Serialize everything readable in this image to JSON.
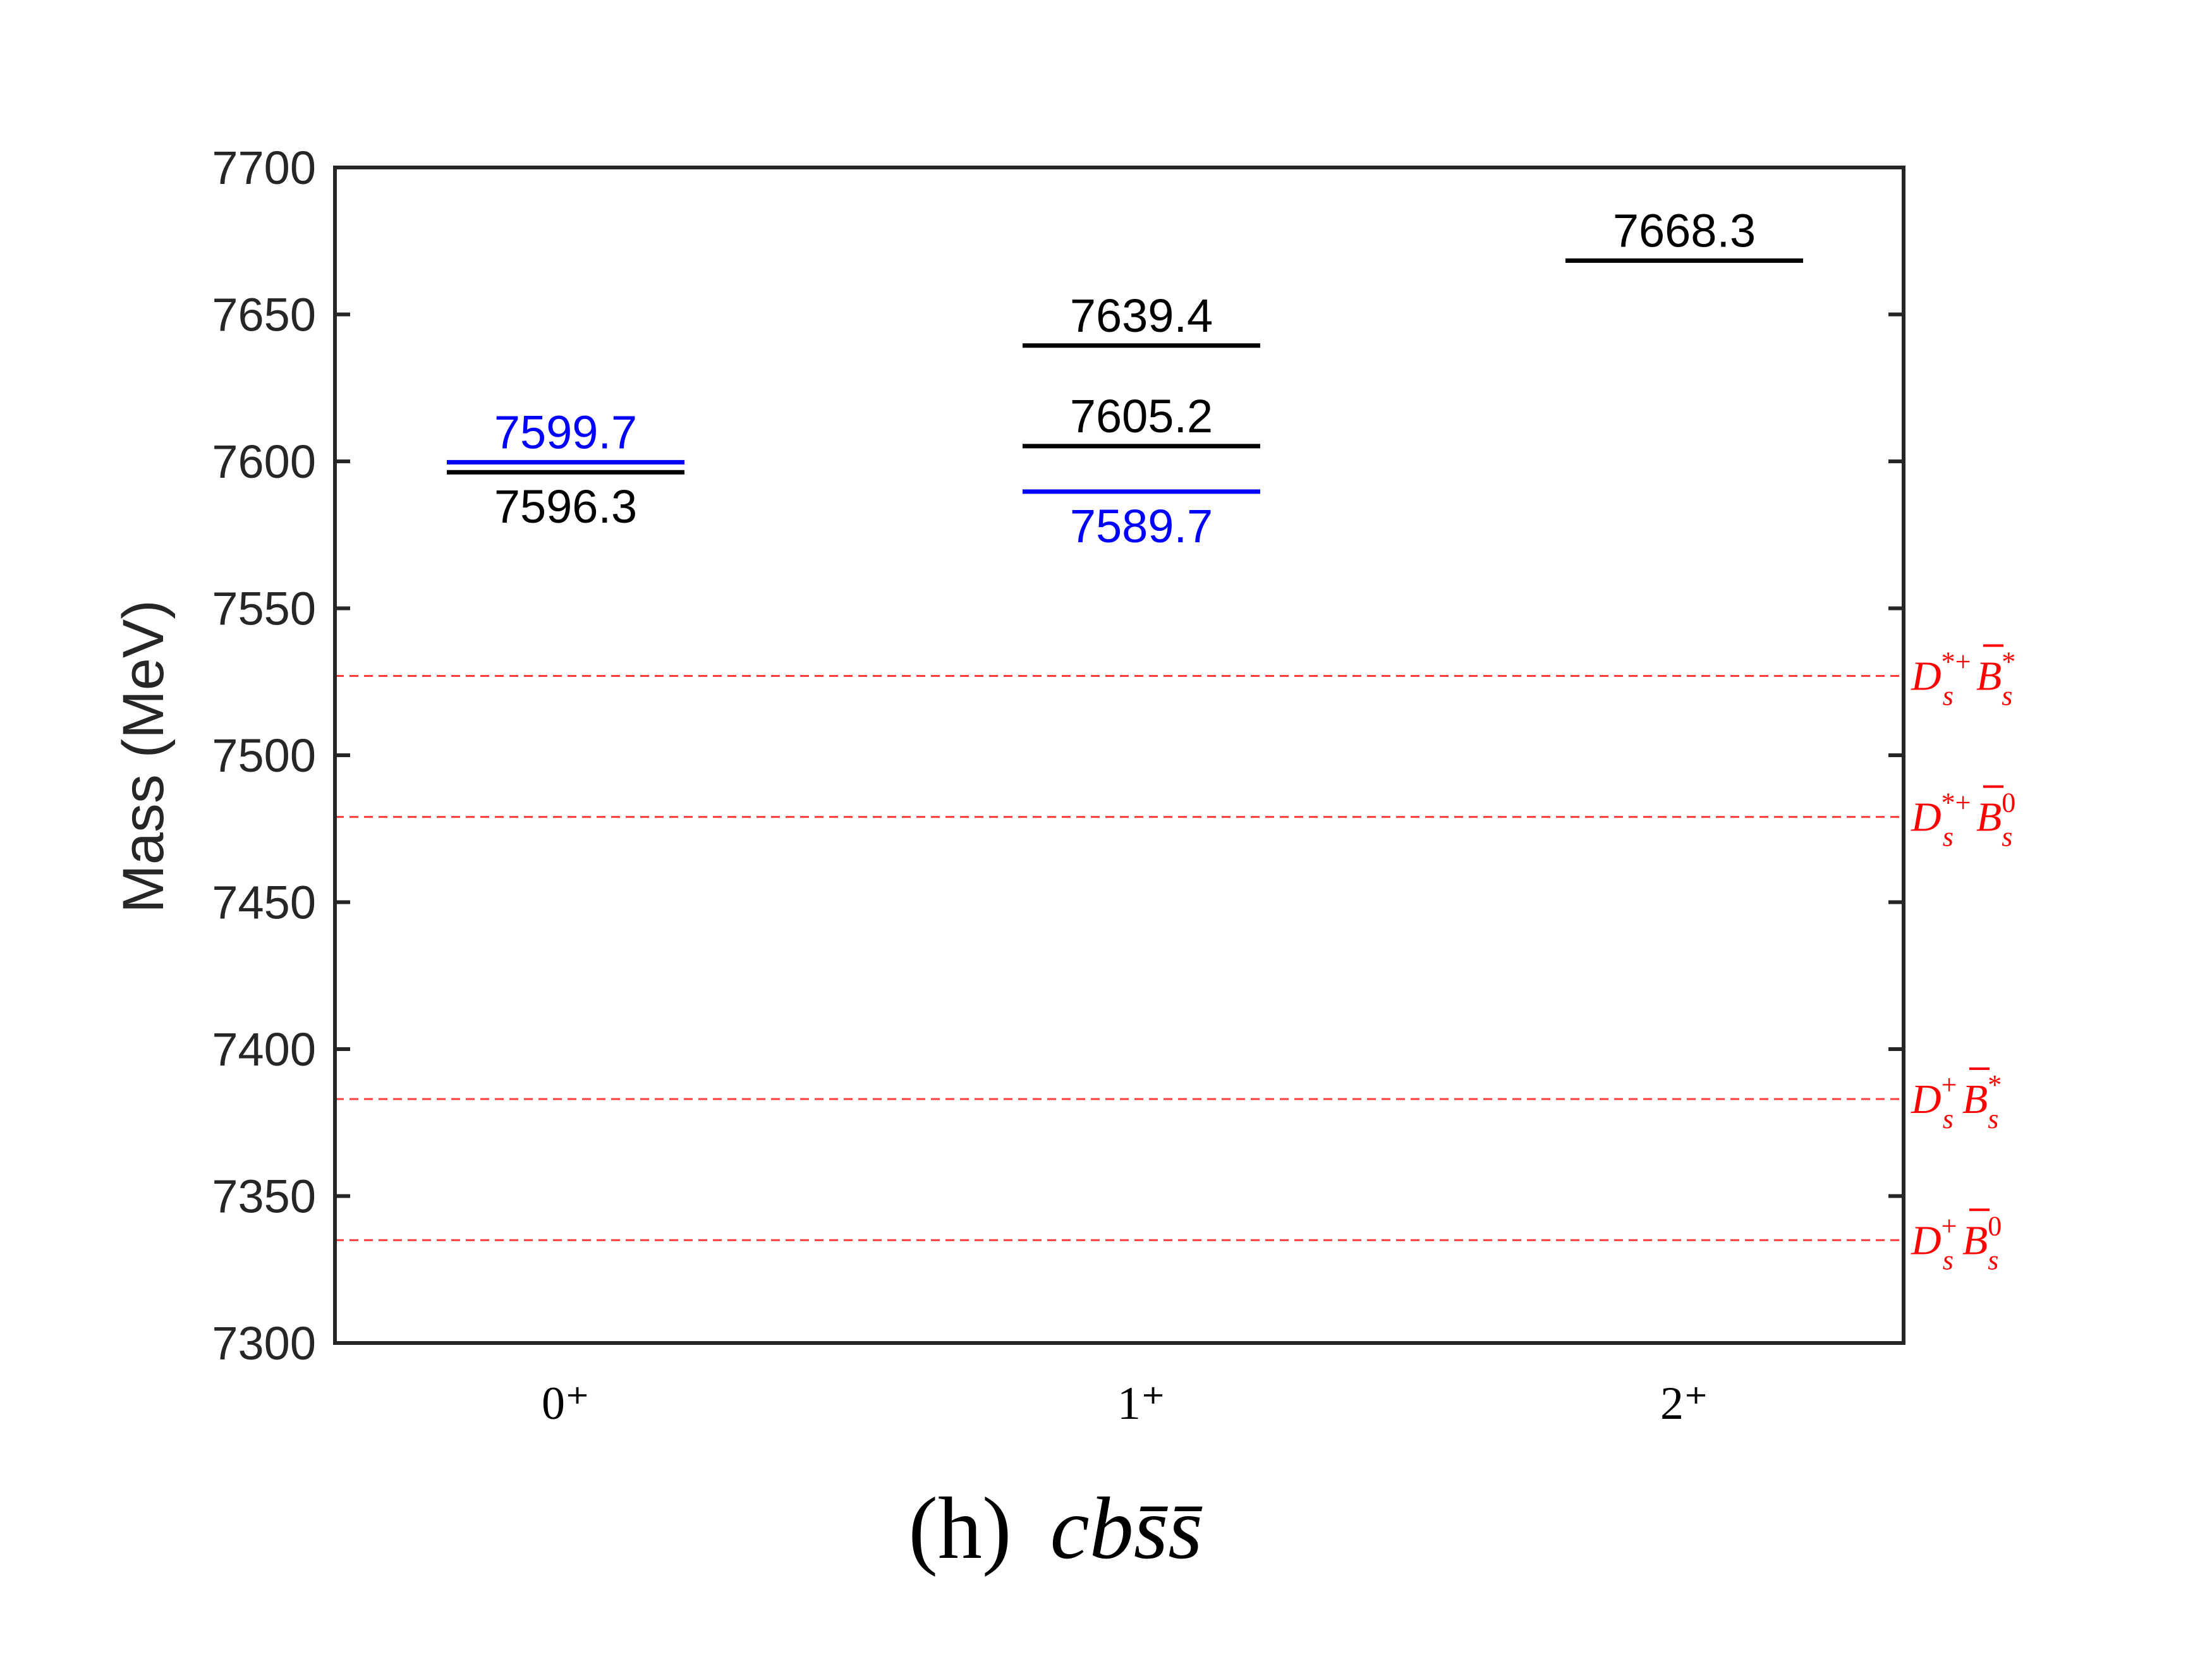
{
  "chart_data": {
    "type": "level-diagram",
    "title": "(h) cbs̄s̄",
    "caption_label": "(h)",
    "caption_formula": "cbs̄s̄",
    "ylabel": "Mass (MeV)",
    "xlabel": "",
    "ylim": [
      7300,
      7700
    ],
    "yticks": [
      7300,
      7350,
      7400,
      7450,
      7500,
      7550,
      7600,
      7650,
      7700
    ],
    "categories": [
      "0⁺",
      "1⁺",
      "2⁺"
    ],
    "levels": [
      {
        "category": 0,
        "value": 7599.7,
        "label": "7599.7",
        "color": "#0000ff",
        "label_pos": "above"
      },
      {
        "category": 0,
        "value": 7596.3,
        "label": "7596.3",
        "color": "#000000",
        "label_pos": "below"
      },
      {
        "category": 1,
        "value": 7639.4,
        "label": "7639.4",
        "color": "#000000",
        "label_pos": "above"
      },
      {
        "category": 1,
        "value": 7605.2,
        "label": "7605.2",
        "color": "#000000",
        "label_pos": "above"
      },
      {
        "category": 1,
        "value": 7589.7,
        "label": "7589.7",
        "color": "#0000ff",
        "label_pos": "below"
      },
      {
        "category": 2,
        "value": 7668.3,
        "label": "7668.3",
        "color": "#000000",
        "label_pos": "above"
      }
    ],
    "thresholds": [
      {
        "value": 7527,
        "label": "Ds*+ B̄s*",
        "D_sup": "*+",
        "B_sup": "*"
      },
      {
        "value": 7479,
        "label": "Ds*+ B̄s0",
        "D_sup": "*+",
        "B_sup": "0"
      },
      {
        "value": 7383,
        "label": "Ds+ B̄s*",
        "D_sup": "+",
        "B_sup": "*"
      },
      {
        "value": 7335,
        "label": "Ds+ B̄s0",
        "D_sup": "+",
        "B_sup": "0"
      }
    ],
    "colors": {
      "axis": "#262626",
      "threshold": "#ff3b3b",
      "threshold_label": "#ff0000"
    }
  }
}
